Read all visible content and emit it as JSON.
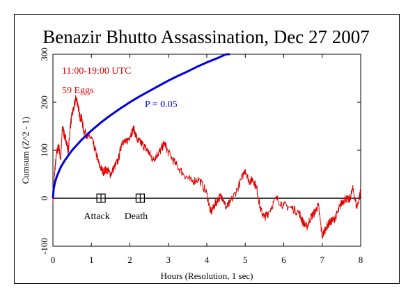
{
  "chart_data": {
    "type": "line",
    "title": "Benazir Bhutto Assassination, Dec 27 2007",
    "xlabel": "Hours (Resolution, 1 sec)",
    "ylabel": "Cumsum (Z^2 - 1)",
    "xlim": [
      0,
      8
    ],
    "ylim": [
      -100,
      300
    ],
    "x_ticks": [
      "0",
      "1",
      "2",
      "3",
      "4",
      "5",
      "6",
      "7",
      "8"
    ],
    "y_ticks": [
      "-100",
      "0",
      "100",
      "200",
      "300"
    ],
    "annotations": {
      "time_range": "11:00-19:00 UTC",
      "eggs": "59 Eggs",
      "p_label": "P = 0.05"
    },
    "events": [
      {
        "label": "Attack",
        "x": 1.25
      },
      {
        "label": "Death",
        "x": 2.27
      }
    ],
    "series": [
      {
        "color": "#e00000",
        "x": [
          0,
          0.05,
          0.1,
          0.15,
          0.2,
          0.25,
          0.3,
          0.35,
          0.4,
          0.45,
          0.5,
          0.55,
          0.6,
          0.65,
          0.7,
          0.75,
          0.8,
          0.9,
          1.0,
          1.1,
          1.2,
          1.3,
          1.4,
          1.5,
          1.6,
          1.7,
          1.8,
          1.9,
          2.0,
          2.1,
          2.2,
          2.3,
          2.4,
          2.5,
          2.6,
          2.7,
          2.8,
          2.9,
          3.0,
          3.2,
          3.4,
          3.6,
          3.8,
          4.0,
          4.1,
          4.2,
          4.3,
          4.4,
          4.5,
          4.6,
          4.8,
          5.0,
          5.1,
          5.2,
          5.3,
          5.4,
          5.5,
          5.6,
          5.8,
          6.0,
          6.2,
          6.4,
          6.5,
          6.6,
          6.7,
          6.8,
          6.9,
          7.0,
          7.1,
          7.2,
          7.3,
          7.4,
          7.5,
          7.6,
          7.7,
          7.8,
          7.9,
          8.0
        ],
        "values": [
          -5,
          60,
          95,
          110,
          80,
          150,
          130,
          120,
          95,
          150,
          175,
          190,
          210,
          195,
          170,
          165,
          140,
          130,
          125,
          100,
          70,
          55,
          60,
          50,
          65,
          80,
          120,
          115,
          130,
          145,
          120,
          115,
          105,
          95,
          80,
          90,
          100,
          115,
          95,
          70,
          50,
          35,
          40,
          10,
          -30,
          -15,
          0,
          5,
          -20,
          -10,
          20,
          60,
          35,
          40,
          20,
          -25,
          -40,
          -30,
          0,
          -15,
          -20,
          -30,
          -50,
          -60,
          -40,
          -30,
          -15,
          -80,
          -60,
          -50,
          -45,
          -30,
          -10,
          0,
          -5,
          20,
          -20,
          15
        ]
      },
      {
        "name": "P = 0.05",
        "color": "#0000dd",
        "x": [
          0,
          0.02,
          0.05,
          0.1,
          0.2,
          0.3,
          0.5,
          0.75,
          1.0,
          1.25,
          1.5,
          1.75,
          2.0,
          2.25,
          2.5,
          2.75,
          3.0,
          3.25,
          3.5,
          3.75,
          4.0,
          4.25,
          4.5,
          4.6
        ],
        "values": [
          0,
          20,
          32,
          45,
          64,
          78,
          100,
          122,
          141,
          158,
          173,
          187,
          200,
          212,
          223,
          234,
          245,
          255,
          264,
          274,
          283,
          291,
          300,
          303
        ]
      }
    ],
    "grid": false
  }
}
